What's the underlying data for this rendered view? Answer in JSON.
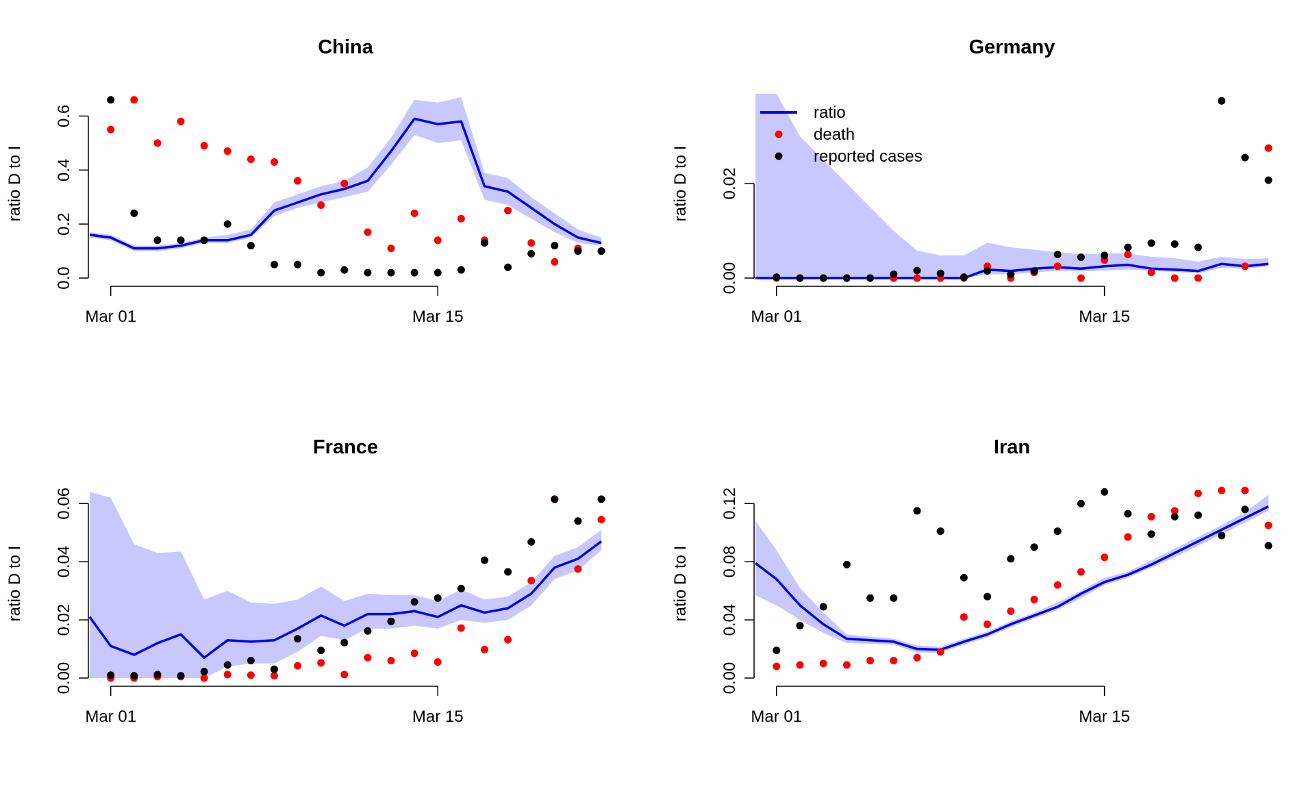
{
  "colors": {
    "ratio_line": "#0000ee",
    "ribbon": "#c8c8ff",
    "death": "#ff0000",
    "reported": "#000000"
  },
  "legend": {
    "position": "top-left of Germany panel",
    "ratio": "ratio",
    "death": "death",
    "reported": "reported cases"
  },
  "chart_data": [
    {
      "type": "line",
      "title": "China",
      "ylabel": "ratio D to I",
      "xticks": [
        {
          "day": 1,
          "label": "Mar 01"
        },
        {
          "day": 15,
          "label": "Mar 15"
        }
      ],
      "xlim": [
        0.1,
        22
      ],
      "ylim": [
        0,
        0.7
      ],
      "yticks": [
        0.0,
        0.2,
        0.4,
        0.6
      ],
      "ytick_labels": [
        "0.0",
        "0.2",
        "0.4",
        "0.6"
      ],
      "ribbon_top": true,
      "series": [
        {
          "name": "ratio",
          "x": [
            0.1,
            1,
            2,
            3,
            4,
            5,
            6,
            7,
            8,
            9,
            10,
            11,
            12,
            13,
            14,
            15,
            16,
            17,
            18,
            19,
            20,
            21,
            22
          ],
          "y": [
            0.16,
            0.15,
            0.11,
            0.11,
            0.12,
            0.14,
            0.14,
            0.16,
            0.25,
            0.28,
            0.31,
            0.33,
            0.36,
            0.47,
            0.59,
            0.57,
            0.58,
            0.34,
            0.32,
            0.26,
            0.2,
            0.15,
            0.13
          ],
          "lower": [
            0.15,
            0.14,
            0.1,
            0.1,
            0.11,
            0.13,
            0.13,
            0.15,
            0.23,
            0.26,
            0.28,
            0.3,
            0.32,
            0.42,
            0.53,
            0.5,
            0.51,
            0.29,
            0.27,
            0.22,
            0.17,
            0.13,
            0.12
          ],
          "upper": [
            0.17,
            0.16,
            0.12,
            0.12,
            0.13,
            0.15,
            0.16,
            0.18,
            0.28,
            0.31,
            0.34,
            0.36,
            0.41,
            0.52,
            0.66,
            0.65,
            0.67,
            0.39,
            0.37,
            0.3,
            0.24,
            0.18,
            0.15
          ]
        },
        {
          "name": "death",
          "x": [
            1,
            2,
            3,
            4,
            5,
            6,
            7,
            8,
            9,
            10,
            11,
            12,
            13,
            14,
            15,
            16,
            17,
            18,
            19,
            20,
            21,
            22
          ],
          "y": [
            0.55,
            0.66,
            0.5,
            0.58,
            0.49,
            0.47,
            0.44,
            0.43,
            0.36,
            0.27,
            0.35,
            0.17,
            0.11,
            0.24,
            0.14,
            0.22,
            0.14,
            0.25,
            0.13,
            0.06,
            0.11,
            0.1
          ]
        },
        {
          "name": "reported cases",
          "x": [
            1,
            2,
            3,
            4,
            5,
            6,
            7,
            8,
            9,
            10,
            11,
            12,
            13,
            14,
            15,
            16,
            17,
            18,
            19,
            20,
            21,
            22
          ],
          "y": [
            0.66,
            0.24,
            0.14,
            0.14,
            0.14,
            0.2,
            0.12,
            0.05,
            0.05,
            0.02,
            0.03,
            0.02,
            0.02,
            0.02,
            0.02,
            0.03,
            0.13,
            0.04,
            0.09,
            0.12,
            0.1,
            0.1
          ]
        }
      ]
    },
    {
      "type": "line",
      "title": "Germany",
      "ylabel": "ratio D to I",
      "xticks": [
        {
          "day": 1,
          "label": "Mar 01"
        },
        {
          "day": 15,
          "label": "Mar 15"
        }
      ],
      "xlim": [
        0.1,
        22
      ],
      "ylim": [
        0,
        0.04
      ],
      "yticks": [
        0.0,
        0.02
      ],
      "ytick_labels": [
        "0.00",
        "0.02"
      ],
      "ribbon_top": false,
      "series": [
        {
          "name": "ratio",
          "x": [
            0.1,
            1,
            2,
            3,
            4,
            5,
            6,
            7,
            8,
            9,
            10,
            11,
            12,
            13,
            14,
            15,
            16,
            17,
            18,
            19,
            20,
            21,
            22
          ],
          "y": [
            0,
            0,
            0,
            0,
            0,
            0,
            0,
            0,
            0,
            0,
            0.0018,
            0.0015,
            0.002,
            0.0023,
            0.002,
            0.0025,
            0.0028,
            0.002,
            0.0018,
            0.0015,
            0.003,
            0.0025,
            0.003
          ],
          "lower": [
            0,
            0,
            0,
            0,
            0,
            0,
            0,
            0,
            0,
            0,
            0.0008,
            0.0008,
            0.0012,
            0.0015,
            0.0014,
            0.0016,
            0.0018,
            0.0015,
            0.0013,
            0.001,
            0.0022,
            0.002,
            0.0025
          ],
          "upper": [
            0.039,
            0.039,
            0.03,
            0.025,
            0.02,
            0.015,
            0.01,
            0.0058,
            0.0048,
            0.0048,
            0.0075,
            0.0065,
            0.006,
            0.0055,
            0.005,
            0.0052,
            0.0052,
            0.0045,
            0.0042,
            0.0035,
            0.0045,
            0.004,
            0.0042
          ]
        },
        {
          "name": "death",
          "x": [
            1,
            2,
            3,
            4,
            5,
            6,
            7,
            8,
            9,
            10,
            11,
            12,
            13,
            14,
            15,
            16,
            17,
            18,
            19,
            20,
            21,
            22
          ],
          "y": [
            0,
            0,
            0,
            0,
            0,
            0,
            0,
            0,
            0,
            0.0025,
            0,
            0.0012,
            0.0025,
            0,
            0.0038,
            0.005,
            0.0012,
            0,
            0,
            0.0375,
            0.0025,
            0.0275
          ]
        },
        {
          "name": "reported cases",
          "x": [
            1,
            2,
            3,
            4,
            5,
            6,
            7,
            8,
            9,
            10,
            11,
            12,
            13,
            14,
            15,
            16,
            17,
            18,
            19,
            20,
            21,
            22
          ],
          "y": [
            0.0002,
            0,
            0,
            0,
            0,
            0.0008,
            0.0016,
            0.001,
            0.0002,
            0.0015,
            0.0008,
            0.0015,
            0.005,
            0.0044,
            0.0048,
            0.0065,
            0.0074,
            0.0072,
            0.0065,
            0.0375,
            0.0255,
            0.0207
          ]
        }
      ]
    },
    {
      "type": "line",
      "title": "France",
      "ylabel": "ratio D to I",
      "xticks": [
        {
          "day": 1,
          "label": "Mar 01"
        },
        {
          "day": 15,
          "label": "Mar 15"
        }
      ],
      "xlim": [
        0.1,
        22
      ],
      "ylim": [
        0,
        0.065
      ],
      "yticks": [
        0.0,
        0.02,
        0.04,
        0.06
      ],
      "ytick_labels": [
        "0.00",
        "0.02",
        "0.04",
        "0.06"
      ],
      "ribbon_top": true,
      "series": [
        {
          "name": "ratio",
          "x": [
            0.1,
            1,
            2,
            3,
            4,
            5,
            6,
            7,
            8,
            9,
            10,
            11,
            12,
            13,
            14,
            15,
            16,
            17,
            18,
            19,
            20,
            21,
            22
          ],
          "y": [
            0.021,
            0.011,
            0.008,
            0.012,
            0.015,
            0.007,
            0.013,
            0.0125,
            0.013,
            0.017,
            0.0215,
            0.018,
            0.022,
            0.022,
            0.023,
            0.021,
            0.025,
            0.0225,
            0.024,
            0.029,
            0.038,
            0.041,
            0.047
          ],
          "lower": [
            0,
            0,
            0,
            0,
            0,
            0,
            0.004,
            0.005,
            0.005,
            0.009,
            0.0145,
            0.013,
            0.017,
            0.017,
            0.018,
            0.017,
            0.02,
            0.019,
            0.02,
            0.025,
            0.034,
            0.037,
            0.044
          ],
          "upper": [
            0.064,
            0.062,
            0.046,
            0.043,
            0.0435,
            0.027,
            0.03,
            0.026,
            0.0255,
            0.027,
            0.0315,
            0.0265,
            0.029,
            0.0285,
            0.0285,
            0.0265,
            0.0305,
            0.027,
            0.028,
            0.033,
            0.042,
            0.045,
            0.051
          ]
        },
        {
          "name": "death",
          "x": [
            1,
            2,
            3,
            4,
            5,
            6,
            7,
            8,
            9,
            10,
            11,
            12,
            13,
            14,
            15,
            16,
            17,
            18,
            19,
            20,
            21,
            22
          ],
          "y": [
            0,
            0,
            0.0005,
            0.0005,
            0,
            0.0012,
            0.001,
            0.0008,
            0.0042,
            0.0052,
            0.0012,
            0.007,
            0.006,
            0.0085,
            0.0055,
            0.0172,
            0.0098,
            0.0132,
            0.0335,
            0.0615,
            0.0375,
            0.0545
          ]
        },
        {
          "name": "reported cases",
          "x": [
            1,
            2,
            3,
            4,
            5,
            6,
            7,
            8,
            9,
            10,
            11,
            12,
            13,
            14,
            15,
            16,
            17,
            18,
            19,
            20,
            21,
            22
          ],
          "y": [
            0.001,
            0.0008,
            0.0012,
            0.0008,
            0.0022,
            0.0045,
            0.006,
            0.003,
            0.0135,
            0.0095,
            0.0122,
            0.0162,
            0.0195,
            0.0262,
            0.0275,
            0.0308,
            0.0405,
            0.0365,
            0.0468,
            0.0615,
            0.054,
            0.0615
          ]
        }
      ]
    },
    {
      "type": "line",
      "title": "Iran",
      "ylabel": "ratio D to I",
      "xticks": [
        {
          "day": 1,
          "label": "Mar 01"
        },
        {
          "day": 15,
          "label": "Mar 15"
        }
      ],
      "xlim": [
        0.1,
        22
      ],
      "ylim": [
        0,
        0.13
      ],
      "yticks": [
        0.0,
        0.04,
        0.08,
        0.12
      ],
      "ytick_labels": [
        "0.00",
        "0.04",
        "0.08",
        "0.12"
      ],
      "ribbon_top": false,
      "series": [
        {
          "name": "ratio",
          "x": [
            0.1,
            1,
            2,
            3,
            4,
            5,
            6,
            7,
            8,
            9,
            10,
            11,
            12,
            13,
            14,
            15,
            16,
            17,
            18,
            19,
            20,
            21,
            22
          ],
          "y": [
            0.079,
            0.068,
            0.05,
            0.037,
            0.027,
            0.026,
            0.025,
            0.02,
            0.0195,
            0.025,
            0.03,
            0.037,
            0.043,
            0.049,
            0.058,
            0.066,
            0.071,
            0.078,
            0.086,
            0.094,
            0.102,
            0.11,
            0.118
          ],
          "lower": [
            0.057,
            0.05,
            0.04,
            0.031,
            0.024,
            0.0235,
            0.023,
            0.0175,
            0.0175,
            0.023,
            0.028,
            0.035,
            0.041,
            0.047,
            0.055,
            0.064,
            0.069,
            0.076,
            0.083,
            0.091,
            0.099,
            0.107,
            0.115
          ],
          "upper": [
            0.108,
            0.088,
            0.062,
            0.045,
            0.03,
            0.0285,
            0.027,
            0.0225,
            0.0215,
            0.027,
            0.032,
            0.039,
            0.045,
            0.052,
            0.06,
            0.069,
            0.073,
            0.081,
            0.089,
            0.097,
            0.105,
            0.114,
            0.126
          ]
        },
        {
          "name": "death",
          "x": [
            1,
            2,
            3,
            4,
            5,
            6,
            7,
            8,
            9,
            10,
            11,
            12,
            13,
            14,
            15,
            16,
            17,
            18,
            19,
            20,
            21,
            22
          ],
          "y": [
            0.008,
            0.009,
            0.01,
            0.009,
            0.012,
            0.012,
            0.014,
            0.018,
            0.042,
            0.037,
            0.046,
            0.054,
            0.064,
            0.073,
            0.083,
            0.097,
            0.111,
            0.115,
            0.127,
            0.129,
            0.129,
            0.105
          ]
        },
        {
          "name": "reported cases",
          "x": [
            1,
            2,
            3,
            4,
            5,
            6,
            7,
            8,
            9,
            10,
            11,
            12,
            13,
            14,
            15,
            16,
            17,
            18,
            19,
            20,
            21,
            22
          ],
          "y": [
            0.019,
            0.036,
            0.049,
            0.078,
            0.055,
            0.055,
            0.115,
            0.101,
            0.069,
            0.056,
            0.082,
            0.09,
            0.101,
            0.12,
            0.128,
            0.113,
            0.099,
            0.111,
            0.112,
            0.098,
            0.116,
            0.091
          ]
        }
      ]
    }
  ]
}
